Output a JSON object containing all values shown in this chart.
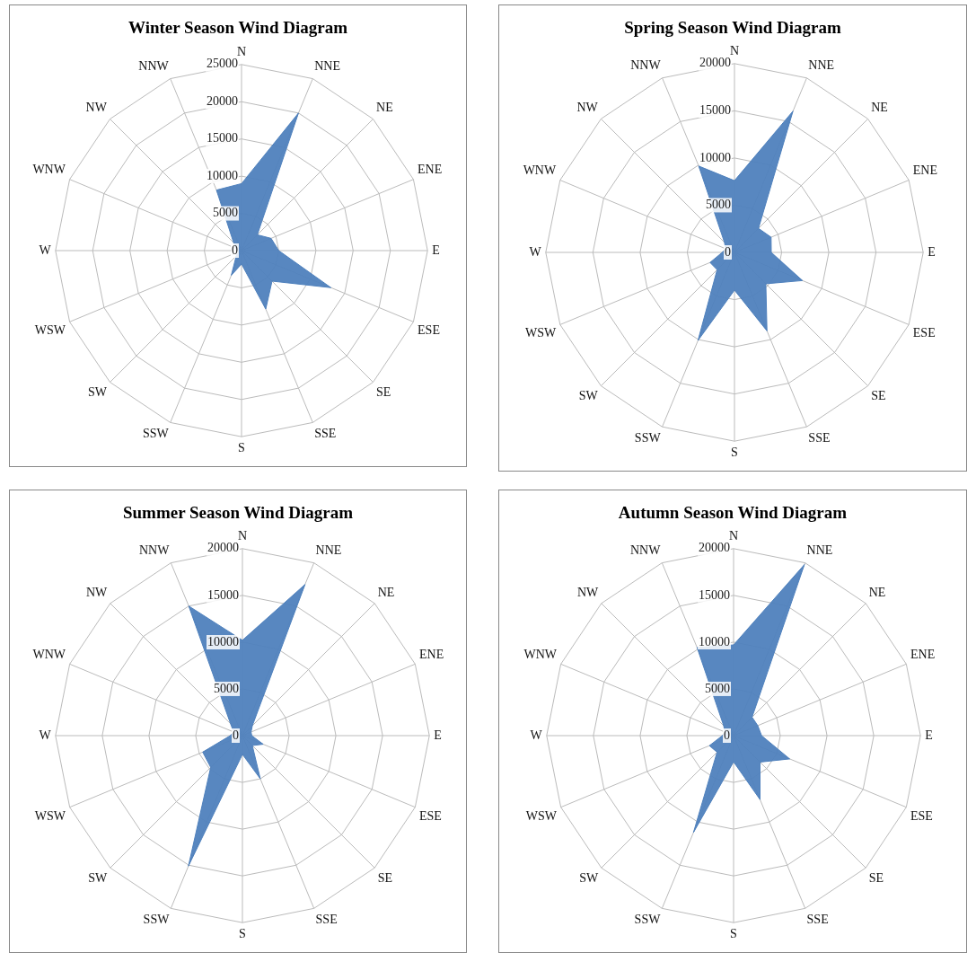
{
  "chart_data": [
    {
      "type": "radar",
      "title": "Winter Season Wind Diagram",
      "categories": [
        "N",
        "NNE",
        "NE",
        "ENE",
        "E",
        "ESE",
        "SE",
        "SSE",
        "S",
        "SSW",
        "SW",
        "WSW",
        "W",
        "WNW",
        "NW",
        "NNW"
      ],
      "series": [
        {
          "color": "#4f81bd",
          "values": [
            9000,
            20000,
            3000,
            4300,
            5000,
            13000,
            5800,
            8500,
            1800,
            3600,
            1000,
            500,
            500,
            800,
            1500,
            8800
          ]
        }
      ],
      "ylim": [
        0,
        25000
      ],
      "yticks": [
        0,
        5000,
        10000,
        15000,
        20000,
        25000
      ],
      "grid": true,
      "legend": false,
      "marker": "none"
    },
    {
      "type": "radar",
      "title": "Spring Season Wind Diagram",
      "categories": [
        "N",
        "NNE",
        "NE",
        "ENE",
        "E",
        "ESE",
        "SE",
        "SSE",
        "S",
        "SSW",
        "SW",
        "WSW",
        "W",
        "WNW",
        "NW",
        "NNW"
      ],
      "series": [
        {
          "color": "#4f81bd",
          "values": [
            7600,
            16200,
            3600,
            4200,
            3900,
            7800,
            4700,
            9000,
            4000,
            10100,
            2600,
            2800,
            1300,
            1000,
            1500,
            9900
          ]
        }
      ],
      "ylim": [
        0,
        20000
      ],
      "yticks": [
        0,
        5000,
        10000,
        15000,
        20000
      ],
      "grid": true,
      "legend": false,
      "marker": "none"
    },
    {
      "type": "radar",
      "title": "Summer Season Wind Diagram",
      "categories": [
        "N",
        "NNE",
        "NE",
        "ENE",
        "E",
        "ESE",
        "SE",
        "SSE",
        "S",
        "SSW",
        "SW",
        "WSW",
        "W",
        "WNW",
        "NW",
        "NNW"
      ],
      "series": [
        {
          "color": "#4f81bd",
          "values": [
            10200,
            17500,
            1500,
            1000,
            1000,
            2400,
            1500,
            5000,
            2000,
            15100,
            4800,
            4600,
            1300,
            1000,
            1800,
            15000
          ]
        }
      ],
      "ylim": [
        0,
        20000
      ],
      "yticks": [
        0,
        5000,
        10000,
        15000,
        20000
      ],
      "grid": true,
      "legend": false,
      "marker": "none"
    },
    {
      "type": "radar",
      "title": "Autumn Season Wind Diagram",
      "categories": [
        "N",
        "NNE",
        "NE",
        "ENE",
        "E",
        "ESE",
        "SE",
        "SSE",
        "S",
        "SSW",
        "SW",
        "WSW",
        "W",
        "WNW",
        "NW",
        "NNW"
      ],
      "series": [
        {
          "color": "#4f81bd",
          "values": [
            9700,
            19800,
            2800,
            2800,
            3000,
            6500,
            4000,
            7400,
            2800,
            11200,
            2500,
            2800,
            1200,
            1000,
            1500,
            10200
          ]
        }
      ],
      "ylim": [
        0,
        20000
      ],
      "yticks": [
        0,
        5000,
        10000,
        15000,
        20000
      ],
      "grid": true,
      "legend": false,
      "marker": "none"
    }
  ]
}
